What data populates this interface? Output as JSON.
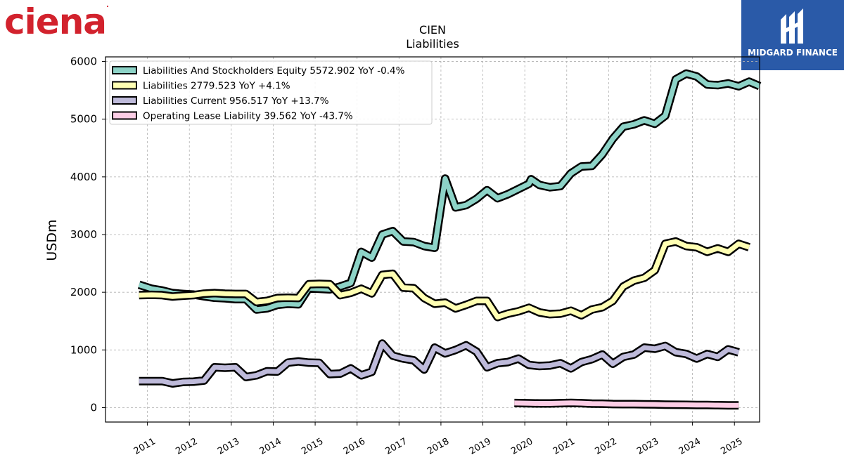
{
  "logos": {
    "left_text": "ciena",
    "right_text": "MIDGARD FINANCE"
  },
  "colors": {
    "liab_equity": "#8dd3c7",
    "liabilities": "#ffffb3",
    "liab_current": "#bebada",
    "op_lease": "#fccde5"
  },
  "chart_data": {
    "type": "line",
    "title": "CIEN",
    "subtitle": "Liabilities",
    "ylabel": "USDm",
    "xlim": [
      2010.0,
      2025.6
    ],
    "ylim": [
      -250,
      6080
    ],
    "yticks": [
      0,
      1000,
      2000,
      3000,
      4000,
      5000,
      6000
    ],
    "xticks": [
      "2011",
      "2012",
      "2013",
      "2014",
      "2015",
      "2016",
      "2017",
      "2018",
      "2019",
      "2020",
      "2021",
      "2022",
      "2023",
      "2024",
      "2025"
    ],
    "grid": true,
    "legend_position": "top-left",
    "series": [
      {
        "name": "Liabilities And Stockholders Equity",
        "legend": "Liabilities And Stockholders Equity  5572.902 YoY -0.4%",
        "color": "#8dd3c7",
        "points": [
          [
            2010.8,
            2130
          ],
          [
            2011.1,
            2060
          ],
          [
            2011.35,
            2030
          ],
          [
            2011.6,
            1985
          ],
          [
            2011.85,
            1970
          ],
          [
            2012.1,
            1960
          ],
          [
            2012.35,
            1930
          ],
          [
            2012.6,
            1905
          ],
          [
            2012.85,
            1895
          ],
          [
            2013.1,
            1880
          ],
          [
            2013.35,
            1880
          ],
          [
            2013.6,
            1700
          ],
          [
            2013.85,
            1720
          ],
          [
            2014.1,
            1780
          ],
          [
            2014.35,
            1800
          ],
          [
            2014.6,
            1790
          ],
          [
            2014.85,
            2070
          ],
          [
            2015.1,
            2060
          ],
          [
            2015.35,
            2050
          ],
          [
            2015.6,
            2100
          ],
          [
            2015.85,
            2160
          ],
          [
            2016.1,
            2700
          ],
          [
            2016.35,
            2600
          ],
          [
            2016.6,
            3000
          ],
          [
            2016.85,
            3060
          ],
          [
            2017.1,
            2880
          ],
          [
            2017.35,
            2870
          ],
          [
            2017.6,
            2800
          ],
          [
            2017.85,
            2770
          ],
          [
            2018.1,
            3970
          ],
          [
            2018.35,
            3470
          ],
          [
            2018.6,
            3510
          ],
          [
            2018.85,
            3620
          ],
          [
            2019.1,
            3770
          ],
          [
            2019.35,
            3630
          ],
          [
            2019.6,
            3700
          ],
          [
            2019.85,
            3790
          ],
          [
            2020.1,
            3880
          ],
          [
            2020.15,
            3960
          ],
          [
            2020.35,
            3860
          ],
          [
            2020.6,
            3820
          ],
          [
            2020.85,
            3840
          ],
          [
            2021.1,
            4060
          ],
          [
            2021.35,
            4180
          ],
          [
            2021.6,
            4190
          ],
          [
            2021.85,
            4390
          ],
          [
            2022.1,
            4660
          ],
          [
            2022.35,
            4870
          ],
          [
            2022.6,
            4910
          ],
          [
            2022.85,
            4980
          ],
          [
            2023.1,
            4920
          ],
          [
            2023.35,
            5060
          ],
          [
            2023.6,
            5690
          ],
          [
            2023.85,
            5790
          ],
          [
            2024.1,
            5740
          ],
          [
            2024.35,
            5600
          ],
          [
            2024.6,
            5590
          ],
          [
            2024.85,
            5620
          ],
          [
            2025.1,
            5570
          ],
          [
            2025.35,
            5650
          ],
          [
            2025.6,
            5573
          ]
        ]
      },
      {
        "name": "Liabilities",
        "legend": "Liabilities  2779.523 YoY +4.1%",
        "color": "#ffffb3",
        "points": [
          [
            2010.8,
            1950
          ],
          [
            2011.1,
            1955
          ],
          [
            2011.35,
            1950
          ],
          [
            2011.6,
            1925
          ],
          [
            2011.85,
            1940
          ],
          [
            2012.1,
            1950
          ],
          [
            2012.35,
            1975
          ],
          [
            2012.6,
            1985
          ],
          [
            2012.85,
            1975
          ],
          [
            2013.1,
            1970
          ],
          [
            2013.35,
            1970
          ],
          [
            2013.6,
            1830
          ],
          [
            2013.85,
            1850
          ],
          [
            2014.1,
            1900
          ],
          [
            2014.35,
            1905
          ],
          [
            2014.6,
            1900
          ],
          [
            2014.85,
            2140
          ],
          [
            2015.1,
            2145
          ],
          [
            2015.35,
            2140
          ],
          [
            2015.6,
            1950
          ],
          [
            2015.85,
            1990
          ],
          [
            2016.1,
            2060
          ],
          [
            2016.35,
            1980
          ],
          [
            2016.6,
            2300
          ],
          [
            2016.85,
            2320
          ],
          [
            2017.1,
            2080
          ],
          [
            2017.35,
            2070
          ],
          [
            2017.6,
            1900
          ],
          [
            2017.85,
            1800
          ],
          [
            2018.1,
            1820
          ],
          [
            2018.35,
            1720
          ],
          [
            2018.6,
            1780
          ],
          [
            2018.85,
            1850
          ],
          [
            2019.1,
            1850
          ],
          [
            2019.35,
            1570
          ],
          [
            2019.6,
            1630
          ],
          [
            2019.85,
            1670
          ],
          [
            2020.1,
            1730
          ],
          [
            2020.35,
            1650
          ],
          [
            2020.6,
            1620
          ],
          [
            2020.85,
            1630
          ],
          [
            2021.1,
            1680
          ],
          [
            2021.35,
            1600
          ],
          [
            2021.6,
            1700
          ],
          [
            2021.85,
            1740
          ],
          [
            2022.1,
            1850
          ],
          [
            2022.35,
            2100
          ],
          [
            2022.6,
            2200
          ],
          [
            2022.85,
            2250
          ],
          [
            2023.1,
            2380
          ],
          [
            2023.35,
            2840
          ],
          [
            2023.6,
            2880
          ],
          [
            2023.85,
            2800
          ],
          [
            2024.1,
            2780
          ],
          [
            2024.35,
            2700
          ],
          [
            2024.6,
            2760
          ],
          [
            2024.85,
            2700
          ],
          [
            2025.1,
            2840
          ],
          [
            2025.35,
            2780
          ]
        ]
      },
      {
        "name": "Liabilities Current",
        "legend": "Liabilities Current  956.517 YoY +13.7%",
        "color": "#bebada",
        "points": [
          [
            2010.8,
            460
          ],
          [
            2011.1,
            460
          ],
          [
            2011.35,
            460
          ],
          [
            2011.6,
            420
          ],
          [
            2011.85,
            445
          ],
          [
            2012.1,
            450
          ],
          [
            2012.35,
            470
          ],
          [
            2012.6,
            700
          ],
          [
            2012.85,
            690
          ],
          [
            2013.1,
            700
          ],
          [
            2013.35,
            530
          ],
          [
            2013.6,
            560
          ],
          [
            2013.85,
            630
          ],
          [
            2014.1,
            625
          ],
          [
            2014.35,
            780
          ],
          [
            2014.6,
            800
          ],
          [
            2014.85,
            780
          ],
          [
            2015.1,
            775
          ],
          [
            2015.35,
            580
          ],
          [
            2015.6,
            590
          ],
          [
            2015.85,
            680
          ],
          [
            2016.1,
            560
          ],
          [
            2016.35,
            620
          ],
          [
            2016.6,
            1110
          ],
          [
            2016.85,
            900
          ],
          [
            2017.1,
            850
          ],
          [
            2017.35,
            820
          ],
          [
            2017.6,
            660
          ],
          [
            2017.85,
            1040
          ],
          [
            2018.1,
            940
          ],
          [
            2018.35,
            1000
          ],
          [
            2018.6,
            1080
          ],
          [
            2018.85,
            970
          ],
          [
            2019.1,
            700
          ],
          [
            2019.35,
            770
          ],
          [
            2019.6,
            790
          ],
          [
            2019.85,
            850
          ],
          [
            2020.1,
            740
          ],
          [
            2020.35,
            720
          ],
          [
            2020.6,
            730
          ],
          [
            2020.85,
            770
          ],
          [
            2021.1,
            680
          ],
          [
            2021.35,
            790
          ],
          [
            2021.6,
            840
          ],
          [
            2021.85,
            920
          ],
          [
            2022.1,
            760
          ],
          [
            2022.35,
            880
          ],
          [
            2022.6,
            920
          ],
          [
            2022.85,
            1040
          ],
          [
            2023.1,
            1020
          ],
          [
            2023.35,
            1070
          ],
          [
            2023.6,
            960
          ],
          [
            2023.85,
            930
          ],
          [
            2024.1,
            850
          ],
          [
            2024.35,
            930
          ],
          [
            2024.6,
            880
          ],
          [
            2024.85,
            1010
          ],
          [
            2025.1,
            957
          ]
        ]
      },
      {
        "name": "Operating Lease Liability",
        "legend": "Operating Lease Liability  39.562 YoY -43.7%",
        "color": "#fccde5",
        "points": [
          [
            2019.75,
            80
          ],
          [
            2020.1,
            75
          ],
          [
            2020.35,
            72
          ],
          [
            2020.6,
            72
          ],
          [
            2020.85,
            78
          ],
          [
            2021.1,
            82
          ],
          [
            2021.35,
            78
          ],
          [
            2021.6,
            70
          ],
          [
            2021.85,
            68
          ],
          [
            2022.1,
            62
          ],
          [
            2022.35,
            60
          ],
          [
            2022.6,
            60
          ],
          [
            2022.85,
            58
          ],
          [
            2023.1,
            55
          ],
          [
            2023.35,
            52
          ],
          [
            2023.6,
            50
          ],
          [
            2023.85,
            48
          ],
          [
            2024.1,
            46
          ],
          [
            2024.35,
            44
          ],
          [
            2024.6,
            42
          ],
          [
            2024.85,
            40
          ],
          [
            2025.1,
            40
          ]
        ]
      }
    ]
  }
}
